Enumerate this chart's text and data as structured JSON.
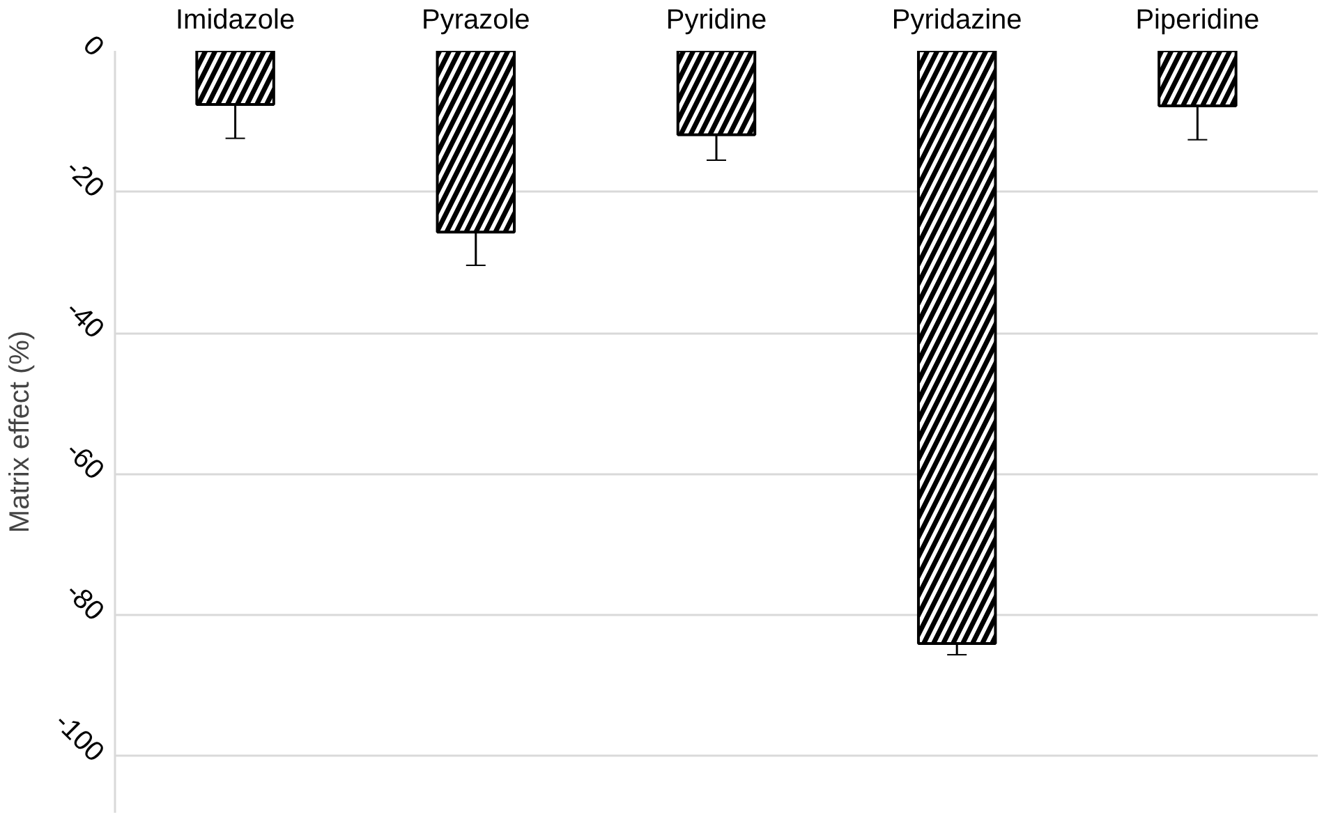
{
  "chart_data": {
    "type": "bar",
    "ylabel": "Matrix effect (%)",
    "categories": [
      "Imidazole",
      "Pyrazole",
      "Pyridine",
      "Pyridazine",
      "Piperidine"
    ],
    "series": [
      {
        "color": "#000000",
        "values": [
          -7.6,
          -25.7,
          -11.9,
          -84.0,
          -7.8
        ],
        "errors": [
          4.8,
          4.7,
          3.6,
          1.6,
          4.8
        ]
      }
    ],
    "ylim": [
      -108,
      0
    ],
    "yticks": [
      {
        "value": 0,
        "label": "0"
      },
      {
        "value": -20,
        "label": "-20"
      },
      {
        "value": -40,
        "label": "-40"
      },
      {
        "value": -60,
        "label": "-60"
      },
      {
        "value": -80,
        "label": "-80"
      },
      {
        "value": -100,
        "label": "-100"
      }
    ],
    "grid": "y"
  }
}
